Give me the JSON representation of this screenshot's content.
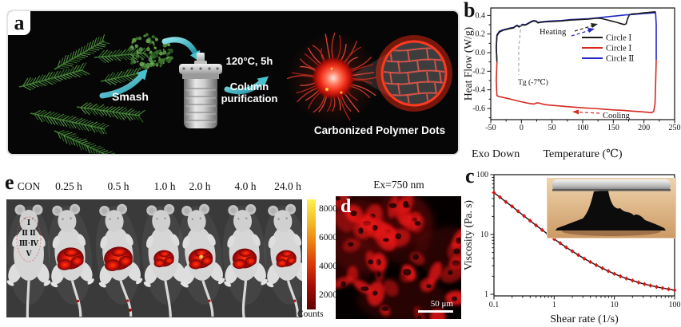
{
  "panels": {
    "a": {
      "label": "a",
      "smash_label": "Smash",
      "condition_label": "120°C, 5h",
      "purification_label": "Column\npurification",
      "product_label": "Carbonized Polymer Dots",
      "arrow_color": "#35aebc",
      "dot_color": "#d93030"
    },
    "b": {
      "label": "b"
    },
    "c": {
      "label": "c"
    },
    "d": {
      "label": "d",
      "title": "Ex=750 nm",
      "scale_bar": "50 μm"
    },
    "e": {
      "label": "e",
      "con_annotations": [
        "Ⅰ",
        "Ⅱ Ⅱ",
        "Ⅲ·Ⅳ",
        "Ⅴ"
      ],
      "colorbar": {
        "ticks": [
          "8000",
          "6000",
          "4000",
          "2000"
        ],
        "unit": "Counts"
      },
      "mice": [
        {
          "label": "CON",
          "signal": 0,
          "tilt": 0,
          "tail": -2
        },
        {
          "label": "0.25 h",
          "signal": 0.95,
          "blob_scale": 1.05,
          "tilt": -5,
          "tail": 8,
          "speck": true
        },
        {
          "label": "0.5 h",
          "signal": 1.0,
          "blob_scale": 1.12,
          "tilt": -6,
          "tail": 10,
          "speck": true
        },
        {
          "label": "1.0 h",
          "signal": 0.6,
          "blob_scale": 0.8,
          "tilt": -4,
          "tail": 4
        },
        {
          "label": "2.0 h",
          "signal": 0.85,
          "blob_scale": 0.95,
          "hotspot": true,
          "tilt": -6,
          "tail": 9,
          "speck": true
        },
        {
          "label": "4.0 h",
          "signal": 0.8,
          "blob_scale": 0.95,
          "tilt": -3,
          "tail": -6
        },
        {
          "label": "24.0 h",
          "signal": 0.55,
          "blob_scale": 0.8,
          "tilt": -5,
          "tail": 10,
          "speck": true
        }
      ]
    }
  },
  "chart_data": [
    {
      "id": "panel-b",
      "type": "line",
      "xlabel": "Temperature (℃)",
      "ylabel": "Heat Flow (W/g)",
      "exo_label": "Exo Down",
      "xlim": [
        -50,
        250
      ],
      "ylim": [
        -0.72,
        0.48
      ],
      "xticks": [
        -50,
        0,
        50,
        100,
        150,
        200,
        250
      ],
      "yticks": [
        0.4,
        0.2,
        0.0,
        -0.2,
        -0.4,
        -0.6
      ],
      "annotations": {
        "tg": "Tg (-7℃)",
        "heating": "Heating",
        "cooling": "Cooling"
      },
      "legend": [
        {
          "label": "Circle Ⅰ",
          "color": "#1a1a1a"
        },
        {
          "label": "Circle Ⅰ",
          "color": "#d42a20"
        },
        {
          "label": "Circle Ⅱ",
          "color": "#2326c8"
        }
      ],
      "series": [
        {
          "name": "Circle Ⅱ heating",
          "color": "#2326c8",
          "points": [
            [
              -40,
              -0.08
            ],
            [
              -41,
              0.06
            ],
            [
              -40,
              0.19
            ],
            [
              -36,
              0.23
            ],
            [
              -30,
              0.245
            ],
            [
              -24,
              0.255
            ],
            [
              -18,
              0.265
            ],
            [
              -13,
              0.27
            ],
            [
              -10,
              0.285
            ],
            [
              -7,
              0.295
            ],
            [
              -4,
              0.28
            ],
            [
              -1,
              0.29
            ],
            [
              2,
              0.305
            ],
            [
              5,
              0.3
            ],
            [
              8,
              0.305
            ],
            [
              12,
              0.32
            ],
            [
              16,
              0.335
            ],
            [
              20,
              0.345
            ],
            [
              24,
              0.34
            ],
            [
              27,
              0.325
            ],
            [
              31,
              0.33
            ],
            [
              38,
              0.335
            ],
            [
              50,
              0.34
            ],
            [
              65,
              0.345
            ],
            [
              80,
              0.355
            ],
            [
              95,
              0.36
            ],
            [
              110,
              0.365
            ],
            [
              125,
              0.375
            ],
            [
              140,
              0.385
            ],
            [
              155,
              0.395
            ],
            [
              170,
              0.405
            ],
            [
              185,
              0.412
            ],
            [
              200,
              0.42
            ],
            [
              210,
              0.425
            ],
            [
              219,
              0.43
            ],
            [
              220,
              0.3
            ],
            [
              220,
              -0.08
            ]
          ]
        },
        {
          "name": "Circle Ⅰ heating",
          "color": "#1a1a1a",
          "points": [
            [
              -40,
              -0.1
            ],
            [
              -41,
              0.05
            ],
            [
              -40,
              0.18
            ],
            [
              -36,
              0.22
            ],
            [
              -30,
              0.24
            ],
            [
              -24,
              0.25
            ],
            [
              -18,
              0.26
            ],
            [
              -13,
              0.265
            ],
            [
              -10,
              0.28
            ],
            [
              -7,
              0.29
            ],
            [
              -4,
              0.275
            ],
            [
              -1,
              0.285
            ],
            [
              2,
              0.3
            ],
            [
              5,
              0.295
            ],
            [
              8,
              0.3
            ],
            [
              12,
              0.315
            ],
            [
              16,
              0.33
            ],
            [
              20,
              0.34
            ],
            [
              24,
              0.335
            ],
            [
              27,
              0.32
            ],
            [
              31,
              0.325
            ],
            [
              38,
              0.33
            ],
            [
              50,
              0.335
            ],
            [
              65,
              0.34
            ],
            [
              80,
              0.35
            ],
            [
              95,
              0.355
            ],
            [
              110,
              0.36
            ],
            [
              122,
              0.37
            ],
            [
              130,
              0.368
            ],
            [
              138,
              0.355
            ],
            [
              147,
              0.34
            ],
            [
              156,
              0.325
            ],
            [
              163,
              0.31
            ],
            [
              168,
              0.302
            ],
            [
              171,
              0.31
            ],
            [
              173,
              0.36
            ],
            [
              176,
              0.405
            ],
            [
              180,
              0.415
            ],
            [
              190,
              0.42
            ],
            [
              200,
              0.428
            ],
            [
              210,
              0.434
            ],
            [
              219,
              0.44
            ]
          ]
        },
        {
          "name": "Circle Ⅰ cooling",
          "color": "#d42a20",
          "points": [
            [
              220,
              -0.08
            ],
            [
              219,
              -0.35
            ],
            [
              218,
              -0.55
            ],
            [
              216,
              -0.63
            ],
            [
              213,
              -0.645
            ],
            [
              205,
              -0.64
            ],
            [
              195,
              -0.635
            ],
            [
              180,
              -0.628
            ],
            [
              165,
              -0.62
            ],
            [
              150,
              -0.615
            ],
            [
              135,
              -0.608
            ],
            [
              120,
              -0.6
            ],
            [
              105,
              -0.595
            ],
            [
              90,
              -0.588
            ],
            [
              75,
              -0.58
            ],
            [
              60,
              -0.572
            ],
            [
              48,
              -0.565
            ],
            [
              40,
              -0.56
            ],
            [
              33,
              -0.55
            ],
            [
              29,
              -0.542
            ],
            [
              25,
              -0.54
            ],
            [
              21,
              -0.552
            ],
            [
              15,
              -0.548
            ],
            [
              8,
              -0.54
            ],
            [
              0,
              -0.528
            ],
            [
              -8,
              -0.515
            ],
            [
              -16,
              -0.502
            ],
            [
              -24,
              -0.49
            ],
            [
              -32,
              -0.478
            ],
            [
              -38,
              -0.468
            ],
            [
              -40,
              -0.462
            ],
            [
              -41,
              -0.3
            ],
            [
              -40,
              -0.1
            ]
          ]
        }
      ]
    },
    {
      "id": "panel-c",
      "type": "scatter-line",
      "xlabel": "Shear rate (1/s)",
      "ylabel": "Viscosity (Pa. s)",
      "xscale": "log",
      "yscale": "log",
      "xlim": [
        0.1,
        100
      ],
      "ylim": [
        1,
        100
      ],
      "xticks": [
        0.1,
        1,
        10,
        100
      ],
      "yticks": [
        1,
        10,
        100
      ],
      "line_color": "#1a1a1a",
      "marker_color": "#e01212",
      "marker": "diamond",
      "x": [
        0.1,
        0.126,
        0.158,
        0.2,
        0.251,
        0.316,
        0.398,
        0.501,
        0.631,
        0.794,
        1,
        1.26,
        1.58,
        2,
        2.51,
        3.16,
        3.98,
        5.01,
        6.31,
        7.94,
        10,
        12.6,
        15.8,
        20,
        25.1,
        31.6,
        39.8,
        50.1,
        63.1,
        79.4,
        100
      ],
      "y": [
        50,
        42,
        35,
        29.5,
        24.5,
        20.4,
        17,
        14.2,
        11.9,
        10,
        8.4,
        7.15,
        6.1,
        5.25,
        4.55,
        3.95,
        3.48,
        3.07,
        2.73,
        2.44,
        2.2,
        2.0,
        1.84,
        1.7,
        1.58,
        1.48,
        1.4,
        1.33,
        1.27,
        1.22,
        1.17
      ]
    }
  ]
}
